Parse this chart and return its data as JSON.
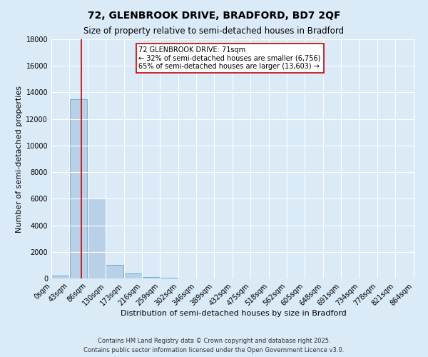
{
  "title_line1": "72, GLENBROOK DRIVE, BRADFORD, BD7 2QF",
  "title_line2": "Size of property relative to semi-detached houses in Bradford",
  "xlabel": "Distribution of semi-detached houses by size in Bradford",
  "ylabel": "Number of semi-detached properties",
  "bar_color": "#b8d0e8",
  "bar_edge_color": "#6aaad4",
  "plot_bg_color": "#daeaf7",
  "grid_color": "#ffffff",
  "bins": [
    0,
    43,
    86,
    129,
    172,
    215,
    258,
    301,
    344,
    387,
    430,
    473,
    516,
    559,
    602,
    645,
    688,
    731,
    774,
    817,
    860
  ],
  "bin_labels": [
    "0sqm",
    "43sqm",
    "86sqm",
    "130sqm",
    "173sqm",
    "216sqm",
    "259sqm",
    "302sqm",
    "346sqm",
    "389sqm",
    "432sqm",
    "475sqm",
    "518sqm",
    "562sqm",
    "605sqm",
    "648sqm",
    "691sqm",
    "734sqm",
    "778sqm",
    "821sqm",
    "864sqm"
  ],
  "bar_heights": [
    200,
    13500,
    6000,
    1000,
    350,
    100,
    50,
    10,
    0,
    0,
    0,
    0,
    0,
    0,
    0,
    0,
    0,
    0,
    0,
    0
  ],
  "property_size": 71,
  "red_line_color": "#cc0000",
  "annotation_text_line1": "72 GLENBROOK DRIVE: 71sqm",
  "annotation_text_line2": "← 32% of semi-detached houses are smaller (6,756)",
  "annotation_text_line3": "65% of semi-detached houses are larger (13,603) →",
  "annotation_box_edge": "#cc0000",
  "annotation_box_face": "#ffffff",
  "ylim": [
    0,
    18000
  ],
  "yticks": [
    0,
    2000,
    4000,
    6000,
    8000,
    10000,
    12000,
    14000,
    16000,
    18000
  ],
  "footer_line1": "Contains HM Land Registry data © Crown copyright and database right 2025.",
  "footer_line2": "Contains public sector information licensed under the Open Government Licence v3.0.",
  "title_fontsize": 10,
  "subtitle_fontsize": 8.5,
  "axis_label_fontsize": 8,
  "tick_fontsize": 7,
  "annotation_fontsize": 7,
  "footer_fontsize": 6
}
